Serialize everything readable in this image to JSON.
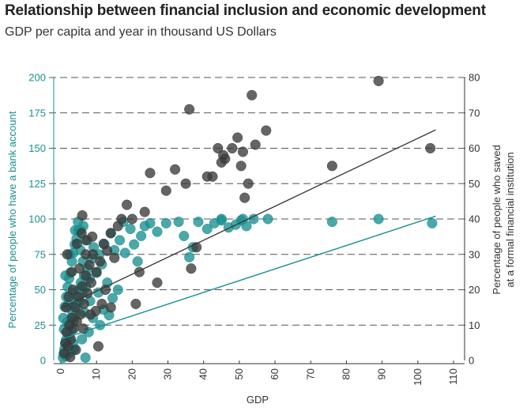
{
  "header": {
    "title": "Relationship between financial inclusion and economic development",
    "subtitle": "GDP per capita and year in thousand US Dollars"
  },
  "colors": {
    "teal": "#1a8f8f",
    "dark": "#3a3a3a",
    "axis": "#333333"
  },
  "chart_data": {
    "type": "scatter",
    "title": "Relationship between financial inclusion and economic development",
    "subtitle": "GDP per capita and year in thousand US Dollars",
    "xlabel": "GDP",
    "ylabel_left": "Percentage of people who have a bank account",
    "ylabel_right_line1": "Percentage of people who saved",
    "ylabel_right_line2": "at a formal financial institution",
    "xlim": [
      0,
      110
    ],
    "ylim_left": [
      0,
      200
    ],
    "ylim_right": [
      0,
      80
    ],
    "x_ticks": [
      "0",
      "10",
      "20",
      "30",
      "40",
      "50",
      "60",
      "70",
      "80",
      "90",
      "100",
      "110"
    ],
    "y_ticks_left": [
      "0",
      "25",
      "50",
      "75",
      "100",
      "125",
      "150",
      "175",
      "200"
    ],
    "y_ticks_right": [
      "0",
      "10",
      "20",
      "30",
      "40",
      "50",
      "60",
      "70",
      "80"
    ],
    "grid": "dashed horizontal",
    "series": [
      {
        "axis": "left",
        "color": "#1a8f8f",
        "points": [
          [
            0.6,
            2
          ],
          [
            0.8,
            5
          ],
          [
            1.0,
            8
          ],
          [
            1.2,
            12
          ],
          [
            1.4,
            3
          ],
          [
            1.6,
            15
          ],
          [
            1.8,
            20
          ],
          [
            2.0,
            10
          ],
          [
            2.2,
            25
          ],
          [
            2.4,
            18
          ],
          [
            2.6,
            6
          ],
          [
            2.8,
            30
          ],
          [
            3.0,
            22
          ],
          [
            3.2,
            35
          ],
          [
            3.4,
            12
          ],
          [
            3.6,
            28
          ],
          [
            3.8,
            40
          ],
          [
            4.0,
            32
          ],
          [
            4.3,
            45
          ],
          [
            4.6,
            38
          ],
          [
            5.0,
            50
          ],
          [
            5.3,
            42
          ],
          [
            5.6,
            55
          ],
          [
            6.0,
            48
          ],
          [
            6.5,
            60
          ],
          [
            7.0,
            52
          ],
          [
            0.7,
            30
          ],
          [
            1.1,
            38
          ],
          [
            1.5,
            45
          ],
          [
            1.9,
            52
          ],
          [
            2.3,
            58
          ],
          [
            2.7,
            62
          ],
          [
            3.1,
            70
          ],
          [
            3.5,
            76
          ],
          [
            3.9,
            82
          ],
          [
            4.4,
            86
          ],
          [
            4.9,
            92
          ],
          [
            5.5,
            78
          ],
          [
            6.2,
            70
          ],
          [
            6.8,
            85
          ],
          [
            7.5,
            65
          ],
          [
            8.0,
            58
          ],
          [
            8.6,
            72
          ],
          [
            9.2,
            80
          ],
          [
            10.0,
            62
          ],
          [
            10.8,
            75
          ],
          [
            11.5,
            68
          ],
          [
            12.2,
            82
          ],
          [
            13.0,
            55
          ],
          [
            14.0,
            90
          ],
          [
            15.0,
            78
          ],
          [
            16.5,
            85
          ],
          [
            18.0,
            76
          ],
          [
            19.5,
            93
          ],
          [
            20.5,
            82
          ],
          [
            21.5,
            70
          ],
          [
            22.5,
            88
          ],
          [
            23.5,
            95
          ],
          [
            25.0,
            97
          ],
          [
            27.0,
            91
          ],
          [
            29.5,
            97
          ],
          [
            33.0,
            98
          ],
          [
            34.5,
            88
          ],
          [
            36.0,
            73
          ],
          [
            37.0,
            80
          ],
          [
            38.5,
            98
          ],
          [
            41.0,
            93
          ],
          [
            43.0,
            97
          ],
          [
            45.0,
            99
          ],
          [
            47.0,
            94
          ],
          [
            49.0,
            96
          ],
          [
            50.5,
            99
          ],
          [
            52.0,
            95
          ],
          [
            54.0,
            100
          ],
          [
            58.0,
            100
          ],
          [
            76.0,
            98
          ],
          [
            89.0,
            100
          ],
          [
            104.0,
            97
          ],
          [
            5.5,
            92
          ],
          [
            4.0,
            92
          ],
          [
            17.5,
            98
          ],
          [
            45.0,
            100
          ],
          [
            51.0,
            100
          ],
          [
            1.3,
            60
          ],
          [
            2.5,
            75
          ],
          [
            4.8,
            98
          ],
          [
            6.3,
            95
          ],
          [
            8.2,
            42
          ],
          [
            9.0,
            30
          ],
          [
            10.5,
            48
          ],
          [
            12.0,
            36
          ],
          [
            14.5,
            44
          ],
          [
            16.0,
            50
          ],
          [
            2.1,
            40
          ],
          [
            3.3,
            48
          ],
          [
            0.9,
            22
          ],
          [
            1.7,
            27
          ],
          [
            6.6,
            34
          ],
          [
            7.8,
            20
          ],
          [
            5.9,
            15
          ],
          [
            11.0,
            25
          ],
          [
            13.5,
            32
          ],
          [
            3.7,
            8
          ],
          [
            6.9,
            2
          ]
        ]
      },
      {
        "axis": "right",
        "color": "#3a3a3a",
        "points": [
          [
            1.0,
            2
          ],
          [
            1.3,
            5
          ],
          [
            1.6,
            8
          ],
          [
            2.0,
            4
          ],
          [
            2.4,
            10
          ],
          [
            2.8,
            6
          ],
          [
            3.2,
            12
          ],
          [
            3.6,
            9
          ],
          [
            4.0,
            15
          ],
          [
            4.5,
            11
          ],
          [
            5.0,
            18
          ],
          [
            5.5,
            13
          ],
          [
            6.0,
            21
          ],
          [
            6.5,
            16
          ],
          [
            7.0,
            24
          ],
          [
            7.5,
            19
          ],
          [
            8.0,
            27
          ],
          [
            8.5,
            22
          ],
          [
            9.0,
            30
          ],
          [
            10.0,
            25
          ],
          [
            11.0,
            28
          ],
          [
            12.0,
            33
          ],
          [
            13.0,
            31
          ],
          [
            14.0,
            36
          ],
          [
            15.0,
            29
          ],
          [
            16.0,
            38
          ],
          [
            17.0,
            40
          ],
          [
            18.5,
            44
          ],
          [
            20.0,
            40
          ],
          [
            21.0,
            16
          ],
          [
            22.0,
            25
          ],
          [
            23.5,
            42
          ],
          [
            25.0,
            53
          ],
          [
            27.0,
            22
          ],
          [
            29.5,
            48
          ],
          [
            32.0,
            54
          ],
          [
            35.0,
            50
          ],
          [
            36.0,
            71
          ],
          [
            36.5,
            26
          ],
          [
            38.0,
            32
          ],
          [
            41.0,
            52
          ],
          [
            42.5,
            52
          ],
          [
            44.0,
            60
          ],
          [
            45.0,
            56
          ],
          [
            45.5,
            58
          ],
          [
            46.0,
            57
          ],
          [
            48.0,
            60
          ],
          [
            49.5,
            63
          ],
          [
            50.5,
            55
          ],
          [
            51.0,
            59
          ],
          [
            51.5,
            46
          ],
          [
            52.5,
            50
          ],
          [
            53.5,
            75
          ],
          [
            54.5,
            61
          ],
          [
            57.5,
            65
          ],
          [
            76.0,
            55
          ],
          [
            89.0,
            79
          ],
          [
            103.5,
            60
          ],
          [
            6.0,
            41
          ],
          [
            7.0,
            30
          ],
          [
            3.0,
            25
          ],
          [
            4.5,
            33
          ],
          [
            1.5,
            15
          ],
          [
            2.2,
            18
          ],
          [
            5.2,
            26
          ],
          [
            8.8,
            35
          ],
          [
            9.8,
            14
          ],
          [
            10.5,
            4
          ],
          [
            12.5,
            20
          ],
          [
            14.0,
            15
          ],
          [
            2.6,
            1
          ],
          [
            4.2,
            3
          ],
          [
            1.8,
            30
          ],
          [
            3.4,
            20
          ],
          [
            6.3,
            9
          ],
          [
            8.3,
            13
          ],
          [
            11.5,
            16
          ],
          [
            5.8,
            36
          ],
          [
            7.3,
            34
          ]
        ]
      }
    ],
    "trend_lines": [
      {
        "axis": "left",
        "color": "#3a3a3a",
        "from": [
          0,
          37
        ],
        "to": [
          105,
          163
        ]
      },
      {
        "axis": "left",
        "color": "#1a8f8f",
        "from": [
          0,
          15
        ],
        "to": [
          105,
          102
        ]
      }
    ]
  }
}
